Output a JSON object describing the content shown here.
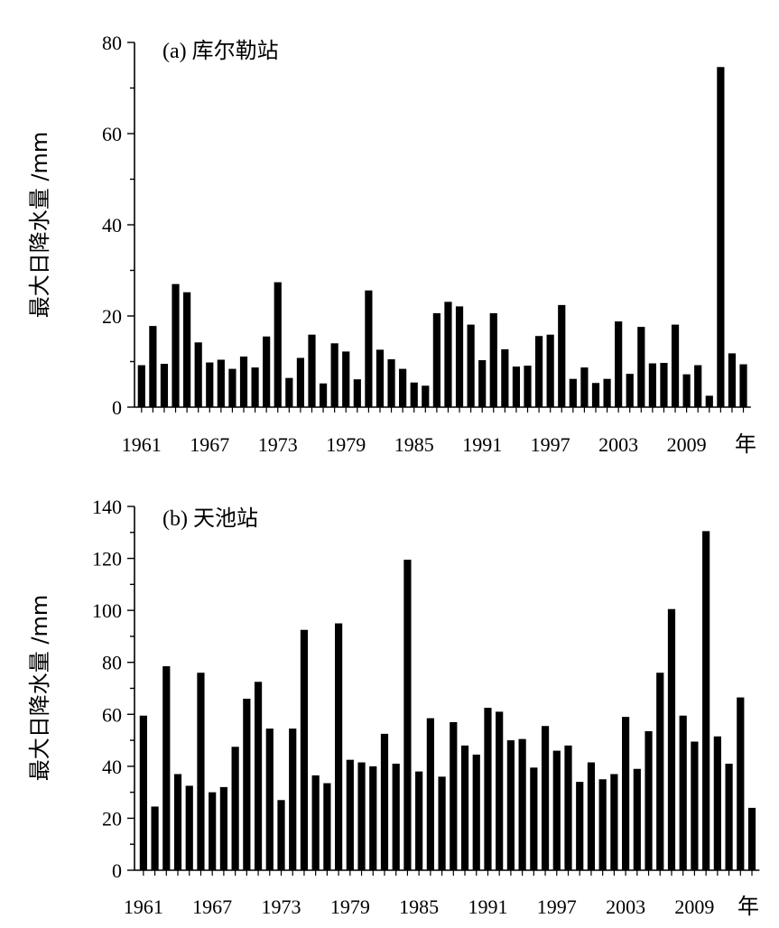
{
  "chart_data": [
    {
      "type": "bar",
      "title": "(a) 库尔勒站",
      "ylabel": "最大日降水量 /mm",
      "xlabel": "",
      "x_unit_label": "年",
      "ylim": [
        0,
        80
      ],
      "yticks": [
        0,
        20,
        40,
        60,
        80
      ],
      "xtick_labels": [
        "1961",
        "1967",
        "1973",
        "1979",
        "1985",
        "1991",
        "1997",
        "2003",
        "2009"
      ],
      "color": "#000000",
      "categories": [
        1961,
        1962,
        1963,
        1964,
        1965,
        1966,
        1967,
        1968,
        1969,
        1970,
        1971,
        1972,
        1973,
        1974,
        1975,
        1976,
        1977,
        1978,
        1979,
        1980,
        1981,
        1982,
        1983,
        1984,
        1985,
        1986,
        1987,
        1988,
        1989,
        1990,
        1991,
        1992,
        1993,
        1994,
        1995,
        1996,
        1997,
        1998,
        1999,
        2000,
        2001,
        2002,
        2003,
        2004,
        2005,
        2006,
        2007,
        2008,
        2009,
        2010,
        2011,
        2012,
        2013,
        2014
      ],
      "values": [
        9.2,
        17.8,
        9.5,
        27.0,
        25.2,
        14.2,
        9.8,
        10.4,
        8.4,
        11.1,
        8.7,
        15.5,
        27.4,
        6.4,
        10.8,
        15.9,
        5.2,
        14.0,
        12.2,
        6.1,
        25.6,
        12.6,
        10.5,
        8.4,
        5.4,
        4.7,
        20.6,
        23.1,
        22.1,
        18.1,
        10.3,
        20.6,
        12.7,
        8.9,
        9.1,
        15.6,
        15.9,
        22.4,
        6.2,
        8.7,
        5.3,
        6.2,
        18.8,
        7.3,
        17.6,
        9.6,
        9.7,
        18.1,
        7.2,
        9.2,
        2.5,
        74.6,
        11.8,
        9.4
      ]
    },
    {
      "type": "bar",
      "title": "(b) 天池站",
      "ylabel": "最大日降水量 /mm",
      "xlabel": "",
      "x_unit_label": "年",
      "ylim": [
        0,
        140
      ],
      "yticks": [
        0,
        20,
        40,
        60,
        80,
        100,
        120,
        140
      ],
      "xtick_labels": [
        "1961",
        "1967",
        "1973",
        "1979",
        "1985",
        "1991",
        "1997",
        "2003",
        "2009"
      ],
      "color": "#000000",
      "categories": [
        1961,
        1962,
        1963,
        1964,
        1965,
        1966,
        1967,
        1968,
        1969,
        1970,
        1971,
        1972,
        1973,
        1974,
        1975,
        1976,
        1977,
        1978,
        1979,
        1980,
        1981,
        1982,
        1983,
        1984,
        1985,
        1986,
        1987,
        1988,
        1989,
        1990,
        1991,
        1992,
        1993,
        1994,
        1995,
        1996,
        1997,
        1998,
        1999,
        2000,
        2001,
        2002,
        2003,
        2004,
        2005,
        2006,
        2007,
        2008,
        2009,
        2010,
        2011,
        2012,
        2013,
        2014
      ],
      "values": [
        59.5,
        24.5,
        78.5,
        37.0,
        32.5,
        76.0,
        30.0,
        32.0,
        47.5,
        66.0,
        72.5,
        54.5,
        27.0,
        54.5,
        92.5,
        36.5,
        33.5,
        95.0,
        42.5,
        41.5,
        40.0,
        52.5,
        41.0,
        119.5,
        38.0,
        58.5,
        36.0,
        57.0,
        48.0,
        44.5,
        62.5,
        61.0,
        50.0,
        50.5,
        39.5,
        55.5,
        46.0,
        48.0,
        34.0,
        41.5,
        35.0,
        37.0,
        59.0,
        39.0,
        53.5,
        76.0,
        100.5,
        59.5,
        49.5,
        130.5,
        51.5,
        41.0,
        66.5,
        24.0
      ]
    }
  ]
}
